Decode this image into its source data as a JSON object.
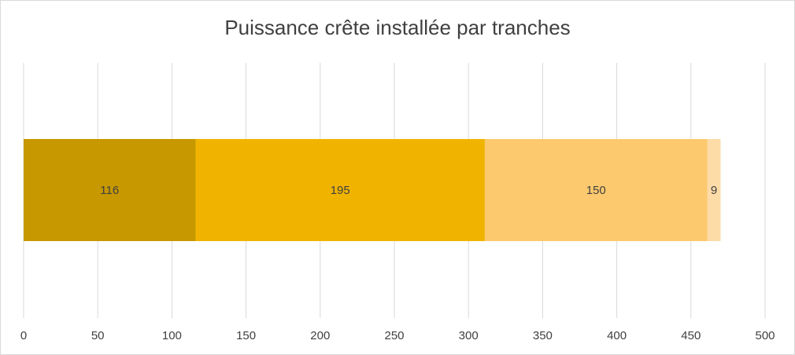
{
  "chart_data": {
    "type": "bar",
    "orientation": "horizontal",
    "stacked": true,
    "title": "Puissance crête installée par tranches",
    "xlim": [
      0,
      500
    ],
    "x_ticks": [
      0,
      50,
      100,
      150,
      200,
      250,
      300,
      350,
      400,
      450,
      500
    ],
    "grid": "vertical",
    "legend": "none",
    "series": [
      {
        "values": [
          116
        ],
        "color": "#C89800",
        "label": "116"
      },
      {
        "values": [
          195
        ],
        "color": "#F0B400",
        "label": "195"
      },
      {
        "values": [
          150
        ],
        "color": "#FDC96E",
        "label": "150"
      },
      {
        "values": [
          9
        ],
        "color": "#FDDCA8",
        "label": "9"
      }
    ]
  }
}
